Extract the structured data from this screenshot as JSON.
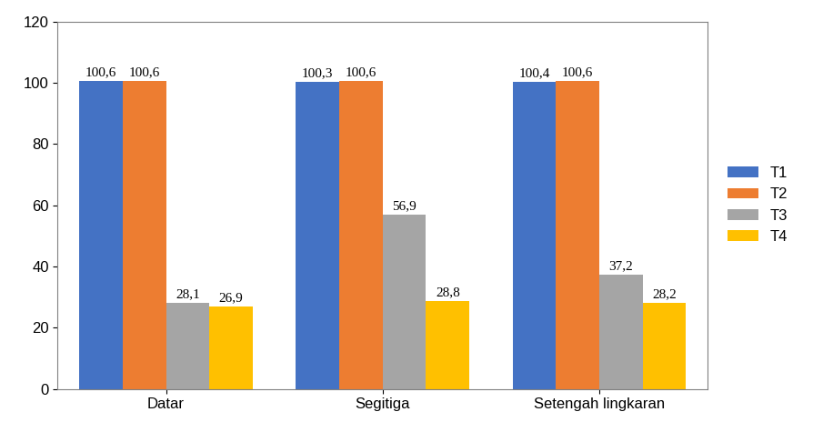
{
  "chart_data": {
    "type": "bar",
    "categories": [
      "Datar",
      "Segitiga",
      "Setengah lingkaran"
    ],
    "series": [
      {
        "name": "T1",
        "color": "#4472c4",
        "values": [
          100.6,
          100.3,
          100.4
        ],
        "value_labels": [
          "100,6",
          "100,3",
          "100,4"
        ]
      },
      {
        "name": "T2",
        "color": "#ed7d31",
        "values": [
          100.6,
          100.6,
          100.6
        ],
        "value_labels": [
          "100,6",
          "100,6",
          "100,6"
        ]
      },
      {
        "name": "T3",
        "color": "#a5a5a5",
        "values": [
          28.1,
          56.9,
          37.2
        ],
        "value_labels": [
          "28,1",
          "56,9",
          "37,2"
        ]
      },
      {
        "name": "T4",
        "color": "#ffc000",
        "values": [
          26.9,
          28.8,
          28.2
        ],
        "value_labels": [
          "26,9",
          "28,8",
          "28,2"
        ]
      }
    ],
    "ylim": [
      0,
      120
    ],
    "yticks": [
      0,
      20,
      40,
      60,
      80,
      100,
      120
    ],
    "grid": false,
    "legend": "right",
    "data_labels": true
  }
}
